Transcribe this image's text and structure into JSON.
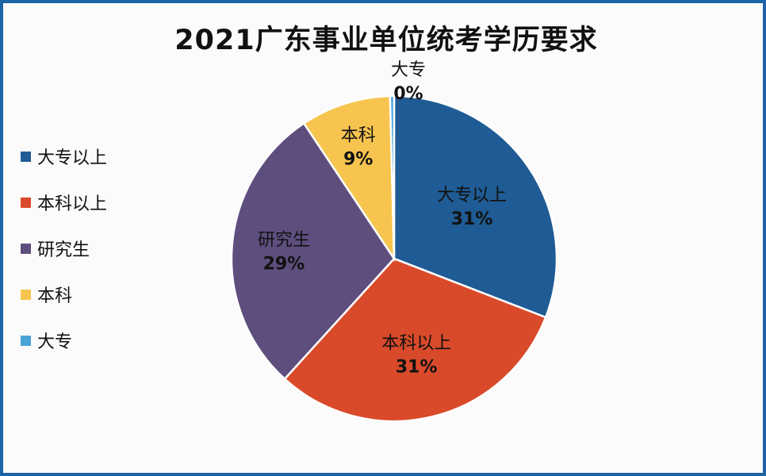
{
  "chart_data": {
    "type": "pie",
    "title": "2021广东事业单位统考学历要求",
    "legend_position": "left",
    "slices": [
      {
        "label": "大专以上",
        "value": 31,
        "value_label": "31%",
        "color": "#1f5b94"
      },
      {
        "label": "本科以上",
        "value": 31,
        "value_label": "31%",
        "color": "#d94a2a"
      },
      {
        "label": "研究生",
        "value": 29,
        "value_label": "29%",
        "color": "#5e4e7e"
      },
      {
        "label": "本科",
        "value": 9,
        "value_label": "9%",
        "color": "#f7c54f"
      },
      {
        "label": "大专",
        "value": 0.4,
        "value_label": "0%",
        "color": "#4aa3d9"
      }
    ]
  }
}
